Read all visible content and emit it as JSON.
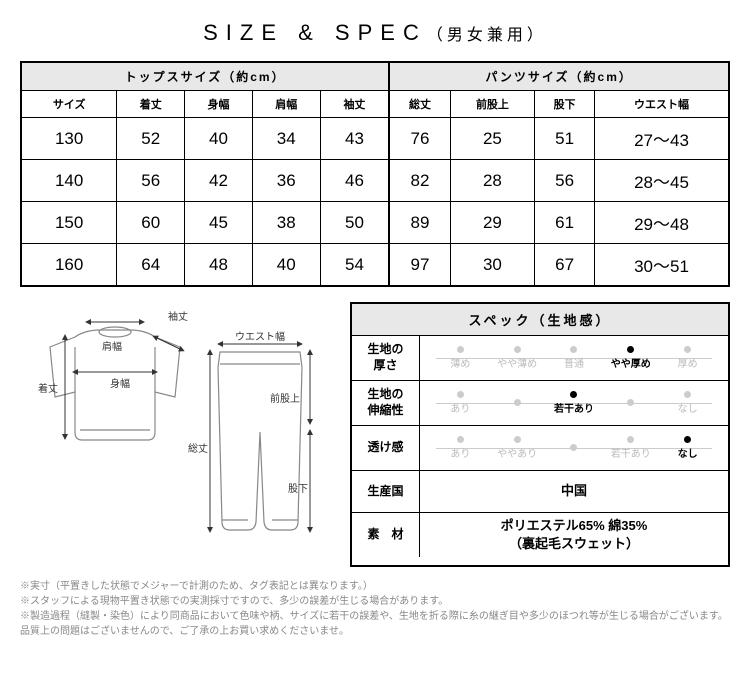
{
  "title_main": "SIZE & SPEC",
  "title_sub": "（男女兼用）",
  "tops_header": "トップスサイズ（約cm）",
  "pants_header": "パンツサイズ（約cm）",
  "cols": [
    "サイズ",
    "着丈",
    "身幅",
    "肩幅",
    "袖丈",
    "総丈",
    "前股上",
    "股下",
    "ウエスト幅"
  ],
  "rows": [
    [
      "130",
      "52",
      "40",
      "34",
      "43",
      "76",
      "25",
      "51",
      "27〜43"
    ],
    [
      "140",
      "56",
      "42",
      "36",
      "46",
      "82",
      "28",
      "56",
      "28〜45"
    ],
    [
      "150",
      "60",
      "45",
      "38",
      "50",
      "89",
      "29",
      "61",
      "29〜48"
    ],
    [
      "160",
      "64",
      "48",
      "40",
      "54",
      "97",
      "30",
      "67",
      "30〜51"
    ]
  ],
  "diagram_labels": {
    "sodetake": "袖丈",
    "katahaba": "肩幅",
    "mihaba": "身幅",
    "kitake": "着丈",
    "waist": "ウエスト幅",
    "maemata": "前股上",
    "soutake": "総丈",
    "matashita": "股下"
  },
  "spec_title": "スペック（生地感）",
  "spec_rows": [
    {
      "label": "生地の\n厚さ",
      "type": "scale",
      "options": [
        "薄め",
        "やや薄め",
        "普通",
        "やや厚め",
        "厚め"
      ],
      "active": 3
    },
    {
      "label": "生地の\n伸縮性",
      "type": "scale",
      "options": [
        "あり",
        "",
        "若干あり",
        "",
        "なし"
      ],
      "active": 2
    },
    {
      "label": "透け感",
      "type": "scale",
      "options": [
        "あり",
        "ややあり",
        "",
        "若干あり",
        "なし"
      ],
      "active": 4
    },
    {
      "label": "生産国",
      "type": "text",
      "value": "中国"
    },
    {
      "label": "素　材",
      "type": "text",
      "value": "ポリエステル65% 綿35%\n（裏起毛スウェット）"
    }
  ],
  "notes": [
    "※実寸（平置きした状態でメジャーで計測のため、タグ表記とは異なります。）",
    "※スタッフによる現物平置き状態での実測採寸ですので、多少の誤差が生じる場合があります。",
    "※製造過程（縫製・染色）により同商品において色味や柄、サイズに若干の誤差や、生地を折る際に糸の継ぎ目や多少のほつれ等が生じる場合がございます。品質上の問題はございませんので、ご了承の上お買い求めくださいませ。"
  ]
}
